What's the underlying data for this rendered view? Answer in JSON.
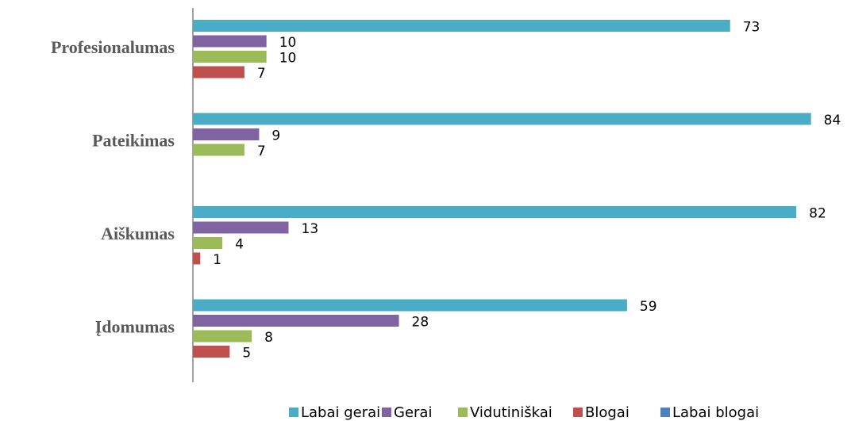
{
  "chart_data": {
    "type": "bar",
    "orientation": "horizontal",
    "categories": [
      "Profesionalumas",
      "Pateikimas",
      "Aiškumas",
      "Įdomumas"
    ],
    "series": [
      {
        "name": "Labai gerai",
        "color": "#4bacc6",
        "values": [
          73,
          84,
          82,
          59
        ]
      },
      {
        "name": "Gerai",
        "color": "#8064a2",
        "values": [
          10,
          9,
          13,
          28
        ]
      },
      {
        "name": "Vidutiniškai",
        "color": "#9bbb59",
        "values": [
          10,
          7,
          4,
          8
        ]
      },
      {
        "name": "Blogai",
        "color": "#c0504d",
        "values": [
          7,
          null,
          1,
          5
        ]
      },
      {
        "name": "Labai blogai",
        "color": "#4f81bd",
        "values": [
          null,
          null,
          null,
          null
        ]
      }
    ],
    "legend": "bottom"
  }
}
